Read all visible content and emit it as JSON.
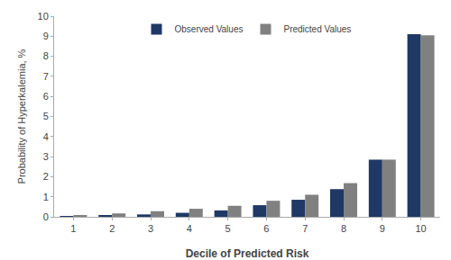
{
  "chart_data": {
    "type": "bar",
    "xlabel": "Decile of Predicted Risk",
    "ylabel": "Probability of Hyperkalemia, %",
    "categories": [
      "1",
      "2",
      "3",
      "4",
      "5",
      "6",
      "7",
      "8",
      "9",
      "10"
    ],
    "series": [
      {
        "name": "Observed Values",
        "color": "#1F3864",
        "values": [
          0.03,
          0.07,
          0.12,
          0.2,
          0.32,
          0.58,
          0.85,
          1.38,
          2.85,
          9.1
        ]
      },
      {
        "name": "Predicted Values",
        "color": "#808080",
        "values": [
          0.09,
          0.17,
          0.28,
          0.4,
          0.55,
          0.8,
          1.1,
          1.68,
          2.85,
          9.05
        ]
      }
    ],
    "ylim": [
      0,
      10
    ],
    "yticks": [
      0,
      1,
      2,
      3,
      4,
      5,
      6,
      7,
      8,
      9,
      10
    ],
    "grid": false,
    "legend": "upper center"
  }
}
